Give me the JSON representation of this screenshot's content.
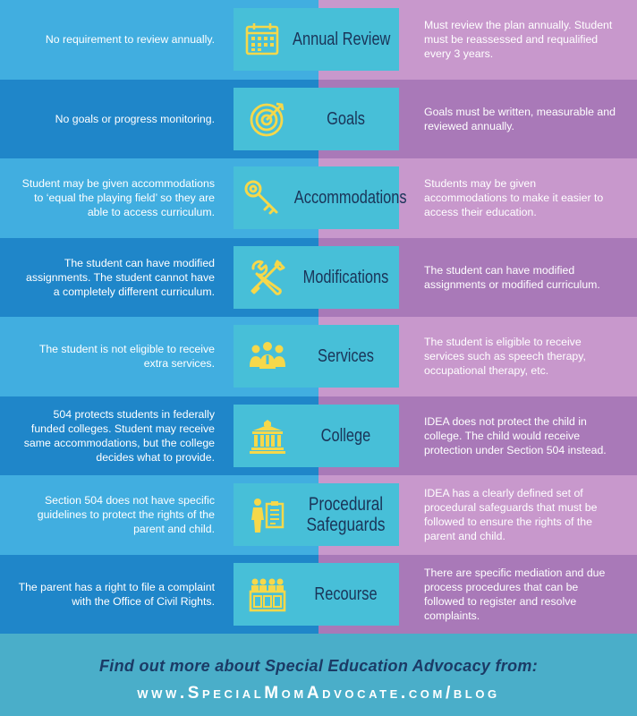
{
  "rows": [
    {
      "label": "Annual Review",
      "icon": "calendar-icon",
      "left": "No requirement to review annually.",
      "right": "Must review the plan annually. Student must be reassessed and requalified every 3 years."
    },
    {
      "label": "Goals",
      "icon": "target-icon",
      "left": "No goals or progress monitoring.",
      "right": "Goals must be written, measurable and reviewed annually."
    },
    {
      "label": "Accommodations",
      "icon": "key-icon",
      "left": "Student may be given accommodations to ‘equal the playing field’ so they are able to access curriculum.",
      "right": "Students may be given accommodations to make it easier to access their education."
    },
    {
      "label": "Modifications",
      "icon": "tools-icon",
      "left": "The student can have modified assignments. The student cannot have a completely different curriculum.",
      "right": "The student can have modified assignments or modified curriculum."
    },
    {
      "label": "Services",
      "icon": "people-icon",
      "left": "The student is not eligible to receive extra services.",
      "right": "The student is eligible to receive services such as speech therapy, occupational therapy, etc."
    },
    {
      "label": "College",
      "icon": "building-icon",
      "left": "504 protects students in federally funded colleges. Student may receive same accommodations, but the college decides what to provide.",
      "right": "IDEA does not protect the child in college. The child would receive protection under Section 504 instead."
    },
    {
      "label": "Procedural Safeguards",
      "icon": "clipboard-person-icon",
      "left": "Section 504 does not have specific guidelines to protect the rights of the parent and child.",
      "right": "IDEA has a clearly defined set of procedural safeguards that must be followed to ensure the rights of the parent and child."
    },
    {
      "label": "Recourse",
      "icon": "courtroom-icon",
      "left": "The parent has a right to file a complaint with the Office of Civil Rights.",
      "right": "There are specific mediation and due process procedures that can be followed to register and resolve complaints."
    }
  ],
  "footer": {
    "line1": "Find out more about Special Education Advocacy from:",
    "line2": "www.SpecialMomAdvocate.com/blog"
  },
  "colors": {
    "left_light": "#41aee0",
    "left_dark": "#1f86c9",
    "right_light": "#c898cc",
    "right_dark": "#a979b8",
    "label_bg": "#47bfd8",
    "icon_yellow": "#f6d84a",
    "label_text": "#1a3458"
  }
}
